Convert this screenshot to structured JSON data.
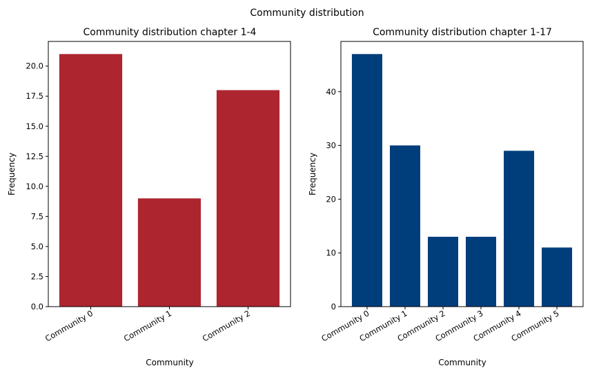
{
  "figure": {
    "suptitle": "Community distribution"
  },
  "chart_data": [
    {
      "type": "bar",
      "title": "Community distribution chapter 1-4",
      "xlabel": "Community",
      "ylabel": "Frequency",
      "categories": [
        "Community 0",
        "Community 1",
        "Community 2"
      ],
      "values": [
        21,
        9,
        18
      ],
      "ylim": [
        0,
        22.05
      ],
      "yticks": [
        "0.0",
        "2.5",
        "5.0",
        "7.5",
        "10.0",
        "12.5",
        "15.0",
        "17.5",
        "20.0"
      ],
      "color": "#ac252f",
      "grid": false,
      "legend": "none"
    },
    {
      "type": "bar",
      "title": "Community distribution chapter 1-17",
      "xlabel": "Community",
      "ylabel": "Frequency",
      "categories": [
        "Community 0",
        "Community 1",
        "Community 2",
        "Community 3",
        "Community 4",
        "Community 5"
      ],
      "values": [
        47,
        30,
        13,
        13,
        29,
        11
      ],
      "ylim": [
        0,
        49.35
      ],
      "yticks": [
        "0",
        "10",
        "20",
        "30",
        "40"
      ],
      "color": "#003d7b",
      "grid": false,
      "legend": "none"
    }
  ]
}
